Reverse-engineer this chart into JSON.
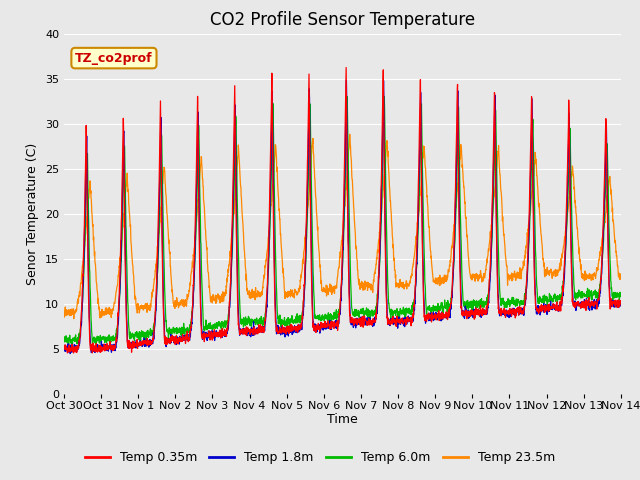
{
  "title": "CO2 Profile Sensor Temperature",
  "ylabel": "Senor Temperature (C)",
  "xlabel": "Time",
  "ylim": [
    0,
    40
  ],
  "series": [
    {
      "label": "Temp 0.35m",
      "color": "#ff0000"
    },
    {
      "label": "Temp 1.8m",
      "color": "#0000cc"
    },
    {
      "label": "Temp 6.0m",
      "color": "#00bb00"
    },
    {
      "label": "Temp 23.5m",
      "color": "#ff8800"
    }
  ],
  "xtick_labels": [
    "Oct 30",
    "Oct 31",
    "Nov 1",
    "Nov 2",
    "Nov 3",
    "Nov 4",
    "Nov 5",
    "Nov 6",
    "Nov 7",
    "Nov 8",
    "Nov 9",
    "Nov 10",
    "Nov 11",
    "Nov 12",
    "Nov 13",
    "Nov 14"
  ],
  "annotation_text": "TZ_co2prof",
  "annotation_box_color": "#ffffcc",
  "annotation_border_color": "#cc8800",
  "yticks": [
    0,
    5,
    10,
    15,
    20,
    25,
    30,
    35,
    40
  ],
  "plot_bg_color": "#e8e8e8",
  "fig_bg_color": "#e8e8e8",
  "grid_color": "#ffffff",
  "title_fontsize": 12,
  "label_fontsize": 9,
  "tick_fontsize": 8,
  "legend_fontsize": 9
}
